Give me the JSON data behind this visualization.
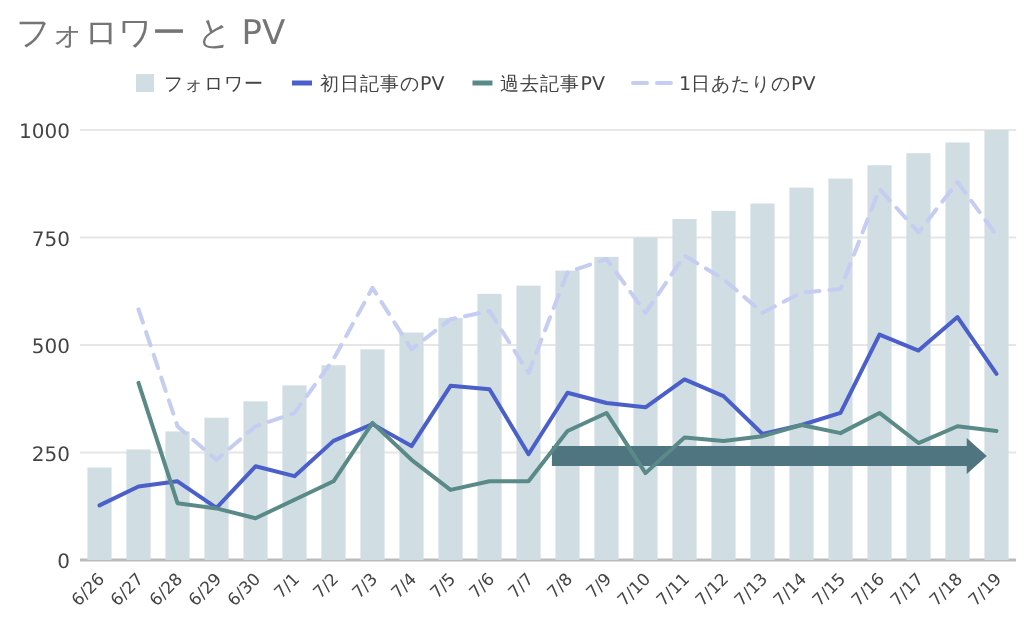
{
  "chart_data": {
    "type": "bar",
    "title": "フォロワー と PV",
    "categories": [
      "6/26",
      "6/27",
      "6/28",
      "6/29",
      "6/30",
      "7/1",
      "7/2",
      "7/3",
      "7/4",
      "7/5",
      "7/6",
      "7/7",
      "7/8",
      "7/9",
      "7/10",
      "7/11",
      "7/12",
      "7/13",
      "7/14",
      "7/15",
      "7/16",
      "7/17",
      "7/18",
      "7/19"
    ],
    "series": [
      {
        "name": "フォロワー",
        "color": "#d0dde3",
        "values": [
          215,
          257,
          299,
          331,
          369,
          406,
          453,
          490,
          529,
          563,
          619,
          638,
          673,
          705,
          750,
          793,
          812,
          829,
          866,
          887,
          918,
          946,
          971,
          1000
        ]
      },
      {
        "name": "初日記事のPV",
        "type": "line",
        "color": "#4a5fc9",
        "line_style": "solid",
        "values": [
          127,
          171,
          183,
          121,
          218,
          195,
          277,
          316,
          265,
          405,
          397,
          246,
          389,
          365,
          355,
          420,
          381,
          293,
          314,
          342,
          524,
          487,
          565,
          433
        ]
      },
      {
        "name": "過去記事PV",
        "type": "line",
        "color": "#5a8a88",
        "line_style": "solid",
        "values": [
          null,
          412,
          132,
          120,
          97,
          140,
          183,
          319,
          233,
          163,
          183,
          183,
          300,
          342,
          202,
          285,
          277,
          288,
          314,
          295,
          342,
          272,
          311,
          300
        ]
      },
      {
        "name": "1日あたりのPV",
        "type": "line",
        "color": "#c5cdf2",
        "line_style": "dashed",
        "values": [
          null,
          583,
          311,
          233,
          311,
          342,
          467,
          633,
          490,
          560,
          579,
          435,
          669,
          700,
          575,
          708,
          653,
          575,
          622,
          630,
          863,
          762,
          879,
          755
        ]
      }
    ],
    "ylim": [
      0,
      1000
    ],
    "yticks": [
      0,
      250,
      500,
      750,
      1000
    ],
    "grid": "y",
    "legend": "top"
  }
}
